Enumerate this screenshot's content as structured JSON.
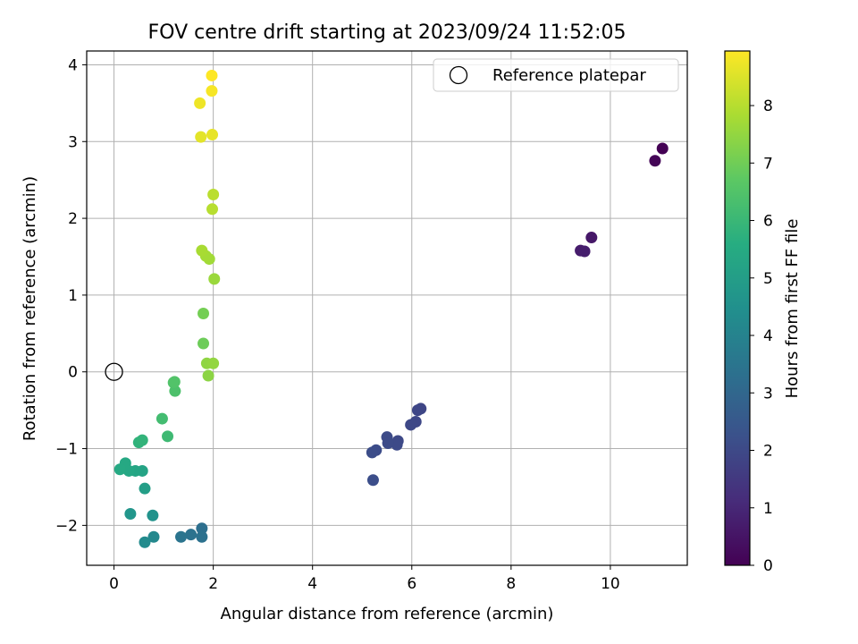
{
  "chart_data": {
    "type": "scatter",
    "title": "FOV centre drift starting at 2023/09/24 11:52:05",
    "xlabel": "Angular distance from reference (arcmin)",
    "ylabel": "Rotation from reference (arcmin)",
    "xlim": [
      -0.55,
      11.55
    ],
    "ylim": [
      -2.52,
      4.18
    ],
    "xticks": [
      0,
      2,
      4,
      6,
      8,
      10
    ],
    "yticks": [
      -2,
      -1,
      0,
      1,
      2,
      3,
      4
    ],
    "grid": true,
    "legend": {
      "position": "top-right",
      "entries": [
        "Reference platepar"
      ]
    },
    "reference_point": {
      "x": 0,
      "y": 0
    },
    "colorbar": {
      "label": "Hours from first FF file",
      "range": [
        0,
        8.95
      ],
      "ticks": [
        0,
        1,
        2,
        3,
        4,
        5,
        6,
        7,
        8
      ],
      "colormap": [
        "#440154",
        "#472c7a",
        "#3b518b",
        "#2c718e",
        "#21908d",
        "#27ad81",
        "#5cc863",
        "#aadc32",
        "#fde725"
      ]
    },
    "points": [
      {
        "x": 11.05,
        "y": 2.91,
        "t": 0.0
      },
      {
        "x": 10.9,
        "y": 2.75,
        "t": 0.1
      },
      {
        "x": 9.62,
        "y": 1.75,
        "t": 0.6
      },
      {
        "x": 9.4,
        "y": 1.58,
        "t": 0.7
      },
      {
        "x": 9.48,
        "y": 1.57,
        "t": 0.75
      },
      {
        "x": 6.18,
        "y": -0.48,
        "t": 1.9
      },
      {
        "x": 6.12,
        "y": -0.5,
        "t": 1.92
      },
      {
        "x": 6.08,
        "y": -0.65,
        "t": 1.95
      },
      {
        "x": 5.98,
        "y": -0.69,
        "t": 1.97
      },
      {
        "x": 5.72,
        "y": -0.9,
        "t": 2.0
      },
      {
        "x": 5.7,
        "y": -0.95,
        "t": 2.02
      },
      {
        "x": 5.5,
        "y": -0.85,
        "t": 2.05
      },
      {
        "x": 5.52,
        "y": -0.93,
        "t": 2.07
      },
      {
        "x": 5.28,
        "y": -1.02,
        "t": 2.1
      },
      {
        "x": 5.2,
        "y": -1.05,
        "t": 2.12
      },
      {
        "x": 5.22,
        "y": -1.41,
        "t": 2.15
      },
      {
        "x": 1.77,
        "y": -2.04,
        "t": 3.3
      },
      {
        "x": 1.77,
        "y": -2.15,
        "t": 3.35
      },
      {
        "x": 1.55,
        "y": -2.12,
        "t": 3.4
      },
      {
        "x": 1.35,
        "y": -2.15,
        "t": 3.45
      },
      {
        "x": 0.8,
        "y": -2.15,
        "t": 4.2
      },
      {
        "x": 0.62,
        "y": -2.22,
        "t": 4.3
      },
      {
        "x": 0.78,
        "y": -1.87,
        "t": 4.6
      },
      {
        "x": 0.33,
        "y": -1.85,
        "t": 4.7
      },
      {
        "x": 0.62,
        "y": -1.52,
        "t": 5.0
      },
      {
        "x": 0.57,
        "y": -1.29,
        "t": 5.2
      },
      {
        "x": 0.43,
        "y": -1.29,
        "t": 5.3
      },
      {
        "x": 0.3,
        "y": -1.29,
        "t": 5.35
      },
      {
        "x": 0.23,
        "y": -1.19,
        "t": 5.4
      },
      {
        "x": 0.12,
        "y": -1.27,
        "t": 5.45
      },
      {
        "x": 0.5,
        "y": -0.92,
        "t": 5.8
      },
      {
        "x": 0.57,
        "y": -0.89,
        "t": 5.85
      },
      {
        "x": 1.08,
        "y": -0.84,
        "t": 6.1
      },
      {
        "x": 0.97,
        "y": -0.61,
        "t": 6.2
      },
      {
        "x": 1.23,
        "y": -0.25,
        "t": 6.4
      },
      {
        "x": 1.2,
        "y": -0.14,
        "t": 6.45
      },
      {
        "x": 1.22,
        "y": -0.13,
        "t": 6.5
      },
      {
        "x": 1.8,
        "y": 0.37,
        "t": 6.95
      },
      {
        "x": 1.8,
        "y": 0.76,
        "t": 7.05
      },
      {
        "x": 1.9,
        "y": -0.05,
        "t": 7.4
      },
      {
        "x": 1.87,
        "y": 0.11,
        "t": 7.45
      },
      {
        "x": 2.0,
        "y": 0.11,
        "t": 7.5
      },
      {
        "x": 2.02,
        "y": 1.21,
        "t": 7.6
      },
      {
        "x": 1.92,
        "y": 1.47,
        "t": 7.7
      },
      {
        "x": 1.85,
        "y": 1.51,
        "t": 7.75
      },
      {
        "x": 1.77,
        "y": 1.58,
        "t": 7.8
      },
      {
        "x": 1.98,
        "y": 2.12,
        "t": 8.0
      },
      {
        "x": 2.0,
        "y": 2.31,
        "t": 8.05
      },
      {
        "x": 1.75,
        "y": 3.06,
        "t": 8.6
      },
      {
        "x": 1.98,
        "y": 3.09,
        "t": 8.65
      },
      {
        "x": 1.73,
        "y": 3.5,
        "t": 8.75
      },
      {
        "x": 1.97,
        "y": 3.66,
        "t": 8.85
      },
      {
        "x": 1.97,
        "y": 3.86,
        "t": 8.95
      }
    ]
  }
}
